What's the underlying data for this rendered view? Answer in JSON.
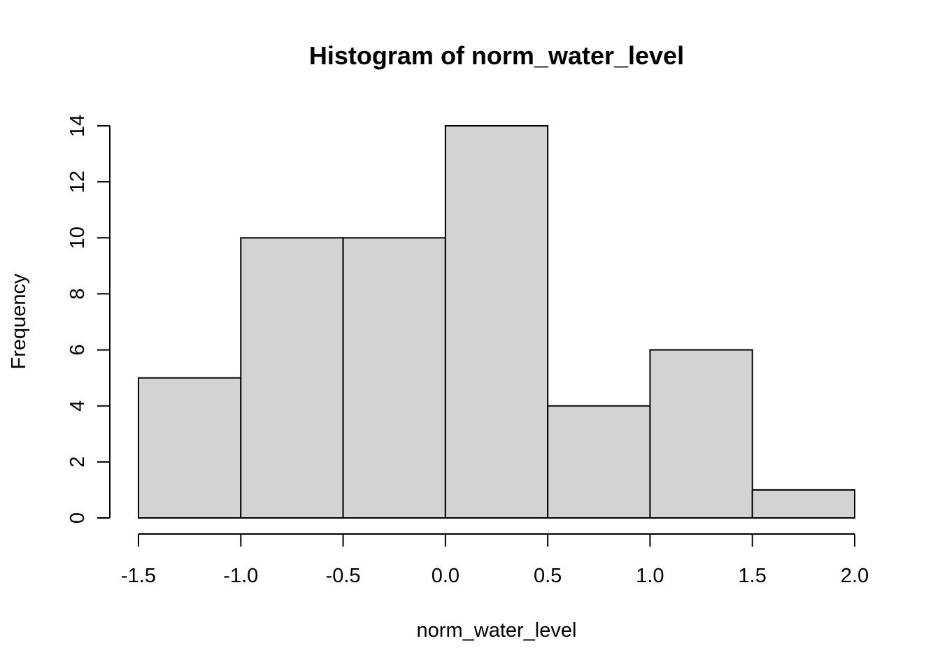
{
  "chart_data": {
    "type": "bar",
    "title": "Histogram of norm_water_level",
    "xlabel": "norm_water_level",
    "ylabel": "Frequency",
    "bin_edges": [
      -1.5,
      -1.0,
      -0.5,
      0.0,
      0.5,
      1.0,
      1.5,
      2.0
    ],
    "values": [
      5,
      10,
      10,
      14,
      4,
      6,
      1
    ],
    "xlim": [
      -1.5,
      2.0
    ],
    "ylim": [
      0,
      14
    ],
    "x_ticks": [
      -1.5,
      -1.0,
      -0.5,
      0.0,
      0.5,
      1.0,
      1.5,
      2.0
    ],
    "x_tick_labels": [
      "-1.5",
      "-1.0",
      "-0.5",
      "0.0",
      "0.5",
      "1.0",
      "1.5",
      "2.0"
    ],
    "y_ticks": [
      0,
      2,
      4,
      6,
      8,
      10,
      12,
      14
    ],
    "y_tick_labels": [
      "0",
      "2",
      "4",
      "6",
      "8",
      "10",
      "12",
      "14"
    ],
    "grid": false,
    "legend": "none",
    "colors": {
      "bar_fill": "#d3d3d3",
      "bar_stroke": "#000000",
      "axis": "#000000",
      "background": "#ffffff"
    }
  }
}
